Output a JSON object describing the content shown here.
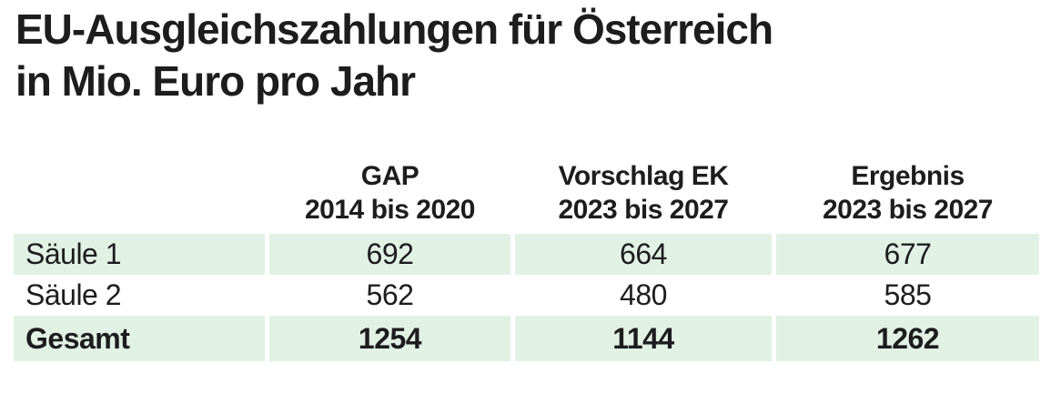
{
  "title": {
    "line1": "EU-Ausgleichszahlungen für Österreich",
    "line2": "in Mio. Euro pro Jahr"
  },
  "chart_data": {
    "type": "table",
    "title": "EU-Ausgleichszahlungen für Österreich in Mio. Euro pro Jahr",
    "unit": "Mio. Euro pro Jahr",
    "columns": [
      {
        "line1": "GAP",
        "line2": "2014 bis 2020"
      },
      {
        "line1": "Vorschlag EK",
        "line2": "2023 bis 2027"
      },
      {
        "line1": "Ergebnis",
        "line2": "2023 bis 2027"
      }
    ],
    "rows": [
      {
        "label": "Säule 1",
        "values": [
          692,
          664,
          677
        ],
        "emphasis": false
      },
      {
        "label": "Säule 2",
        "values": [
          562,
          480,
          585
        ],
        "emphasis": false
      },
      {
        "label": "Gesamt",
        "values": [
          1254,
          1144,
          1262
        ],
        "emphasis": true
      }
    ]
  },
  "colors": {
    "row_highlight": "#e1f2e5",
    "text": "#1d1d1d",
    "background": "#ffffff"
  }
}
